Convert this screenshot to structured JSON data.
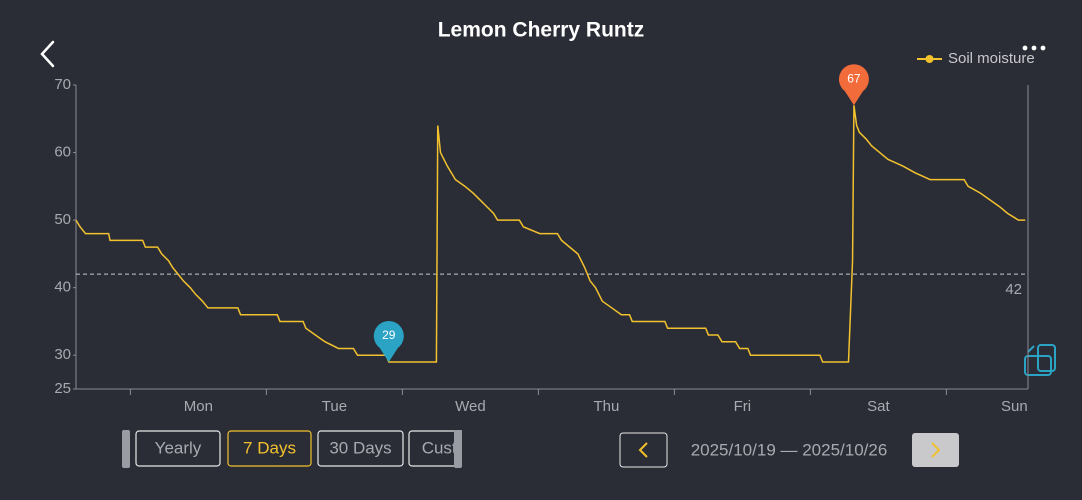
{
  "header": {
    "title": "Lemon Cherry Runtz"
  },
  "chart_data": {
    "type": "line",
    "series": [
      {
        "name": "Soil moisture",
        "color": "#f2c12e",
        "x": [
          0.6,
          0.63,
          0.67,
          0.84,
          0.85,
          1.09,
          1.11,
          1.2,
          1.23,
          1.28,
          1.31,
          1.35,
          1.39,
          1.44,
          1.48,
          1.53,
          1.57,
          1.79,
          1.81,
          2.08,
          2.1,
          2.27,
          2.29,
          2.36,
          2.43,
          2.53,
          2.64,
          2.67,
          2.88,
          2.9,
          3.25,
          3.26,
          3.28,
          3.33,
          3.39,
          3.46,
          3.52,
          3.57,
          3.62,
          3.67,
          3.7,
          3.86,
          3.89,
          4.01,
          4.14,
          4.17,
          4.23,
          4.29,
          4.34,
          4.38,
          4.42,
          4.47,
          4.54,
          4.61,
          4.67,
          4.69,
          4.93,
          4.95,
          5.23,
          5.25,
          5.32,
          5.35,
          5.45,
          5.48,
          5.54,
          5.56,
          6.07,
          6.09,
          6.28,
          6.31,
          6.32,
          6.34,
          6.36,
          6.41,
          6.45,
          6.51,
          6.57,
          6.68,
          6.77,
          6.88,
          7.13,
          7.16,
          7.25,
          7.32,
          7.39,
          7.45,
          7.53,
          7.58
        ],
        "values": [
          50,
          49,
          48,
          48,
          47,
          47,
          46,
          46,
          45,
          44,
          43,
          42,
          41,
          40,
          39,
          38,
          37,
          37,
          36,
          36,
          35,
          35,
          34,
          33,
          32,
          31,
          31,
          30,
          30,
          29,
          29,
          64,
          60,
          58,
          56,
          55,
          54,
          53,
          52,
          51,
          50,
          50,
          49,
          48,
          48,
          47,
          46,
          45,
          43,
          41,
          40,
          38,
          37,
          36,
          36,
          35,
          35,
          34,
          34,
          33,
          33,
          32,
          32,
          31,
          31,
          30,
          30,
          29,
          29,
          44,
          67,
          64,
          63,
          62,
          61,
          60,
          59,
          58,
          57,
          56,
          56,
          55,
          54,
          53,
          52,
          51,
          50,
          50
        ]
      }
    ],
    "xlim": [
      0.6,
      7.6
    ],
    "xticks": [
      {
        "value": 1.5,
        "label": "Mon"
      },
      {
        "value": 2.5,
        "label": "Tue"
      },
      {
        "value": 3.5,
        "label": "Wed"
      },
      {
        "value": 4.5,
        "label": "Thu"
      },
      {
        "value": 5.5,
        "label": "Fri"
      },
      {
        "value": 6.5,
        "label": "Sat"
      },
      {
        "value": 7.5,
        "label": "Sun"
      }
    ],
    "x_minor_ticks": [
      1,
      2,
      3,
      4,
      5,
      6,
      7
    ],
    "ylim": [
      25,
      70
    ],
    "yticks": [
      25,
      30,
      40,
      50,
      60,
      70
    ],
    "reference_line": {
      "value": 42
    },
    "extremes": {
      "min": {
        "x": 2.9,
        "value": 29,
        "color": "#2aa3c5"
      },
      "max": {
        "x": 6.32,
        "value": 67,
        "color": "#f26b3a"
      }
    },
    "legend": "top-right"
  },
  "range_buttons": {
    "options": [
      "Yearly",
      "7 Days",
      "30 Days",
      "Custom"
    ],
    "active": 1
  },
  "date_range": "2025/10/19 — 2025/10/26"
}
